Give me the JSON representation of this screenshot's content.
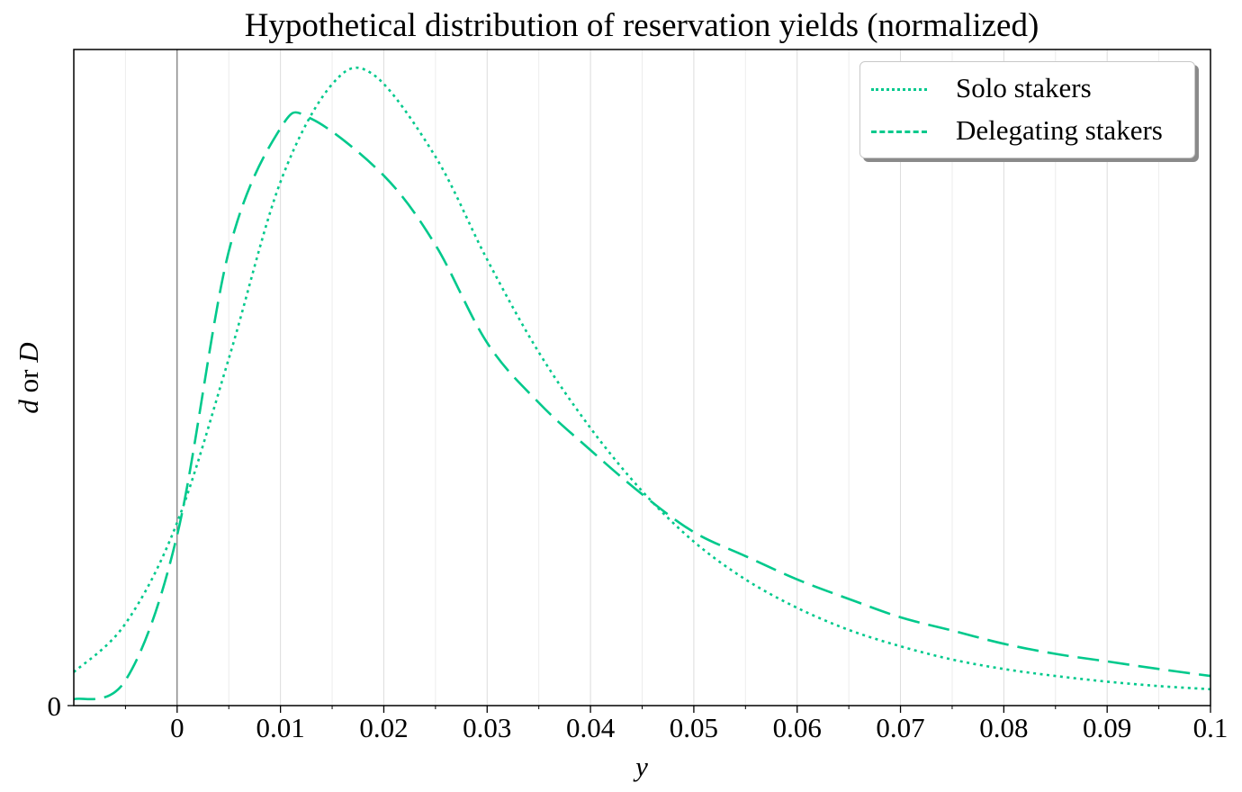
{
  "chart_data": {
    "type": "line",
    "title": "Hypothetical distribution of reservation yields (normalized)",
    "xlabel": "y",
    "ylabel_italic_1": "d",
    "ylabel_mid": " or ",
    "ylabel_italic_2": "D",
    "xlim": [
      -0.01,
      0.1
    ],
    "ylim": [
      0,
      1.04
    ],
    "x_ticks": [
      0,
      0.01,
      0.02,
      0.03,
      0.04,
      0.05,
      0.06,
      0.07,
      0.08,
      0.09,
      0.1
    ],
    "x_tick_labels": [
      "0",
      "0.01",
      "0.02",
      "0.03",
      "0.04",
      "0.05",
      "0.06",
      "0.07",
      "0.08",
      "0.09",
      "0.1"
    ],
    "x_minor_ticks": [
      -0.005,
      0.005,
      0.015,
      0.025,
      0.035,
      0.045,
      0.055,
      0.065,
      0.075,
      0.085,
      0.095
    ],
    "y_ticks": [
      0
    ],
    "y_tick_labels": [
      "0"
    ],
    "grid": "vertical major and minor",
    "legend_position": "top-right",
    "line_color": "#00c98c",
    "series": [
      {
        "name": "Solo stakers",
        "style": "dotted",
        "x": [
          -0.01,
          -0.005,
          0,
          0.005,
          0.01,
          0.015,
          0.019,
          0.025,
          0.03,
          0.035,
          0.04,
          0.045,
          0.05,
          0.055,
          0.06,
          0.065,
          0.07,
          0.075,
          0.08,
          0.085,
          0.09,
          0.095,
          0.1
        ],
        "y": [
          0.053,
          0.13,
          0.29,
          0.55,
          0.83,
          0.985,
          1.0,
          0.87,
          0.707,
          0.56,
          0.44,
          0.34,
          0.26,
          0.2,
          0.155,
          0.12,
          0.094,
          0.073,
          0.058,
          0.047,
          0.038,
          0.031,
          0.026
        ]
      },
      {
        "name": "Delegating stakers",
        "style": "dashed",
        "x": [
          -0.01,
          -0.005,
          0,
          0.005,
          0.01,
          0.013,
          0.02,
          0.025,
          0.03,
          0.035,
          0.04,
          0.045,
          0.05,
          0.055,
          0.06,
          0.065,
          0.07,
          0.075,
          0.08,
          0.085,
          0.09,
          0.095,
          0.1
        ],
        "y": [
          0.01,
          0.04,
          0.27,
          0.72,
          0.915,
          0.93,
          0.84,
          0.73,
          0.575,
          0.48,
          0.405,
          0.335,
          0.275,
          0.237,
          0.2,
          0.169,
          0.14,
          0.119,
          0.098,
          0.082,
          0.07,
          0.058,
          0.047
        ]
      }
    ]
  }
}
